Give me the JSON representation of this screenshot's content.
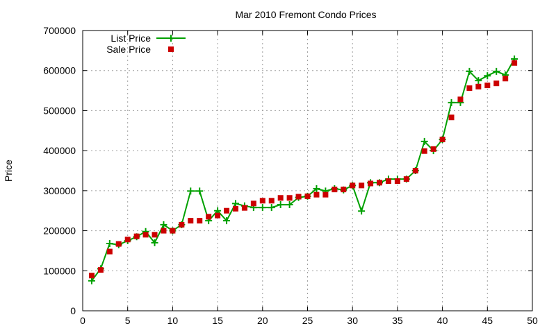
{
  "chart_data": {
    "type": "line",
    "title": "Mar 2010 Fremont Condo Prices",
    "xlabel": "",
    "ylabel": "Price",
    "xlim": [
      0,
      50
    ],
    "ylim": [
      0,
      700000
    ],
    "x_ticks": [
      0,
      5,
      10,
      15,
      20,
      25,
      30,
      35,
      40,
      45,
      50
    ],
    "y_ticks": [
      0,
      100000,
      200000,
      300000,
      400000,
      500000,
      600000,
      700000
    ],
    "grid": true,
    "legend_position": "top-left",
    "x": [
      1,
      2,
      3,
      4,
      5,
      6,
      7,
      8,
      9,
      10,
      11,
      12,
      13,
      14,
      15,
      16,
      17,
      18,
      19,
      20,
      21,
      22,
      23,
      24,
      25,
      26,
      27,
      28,
      29,
      30,
      31,
      32,
      33,
      34,
      35,
      36,
      37,
      38,
      39,
      40,
      41,
      42,
      43,
      44,
      45,
      46,
      47,
      48
    ],
    "series": [
      {
        "name": "List Price",
        "style": "linespoints",
        "marker": "plus",
        "color": "#00a000",
        "values": [
          75000,
          105000,
          168000,
          165000,
          175000,
          185000,
          198000,
          170000,
          215000,
          200000,
          215000,
          299000,
          299000,
          225000,
          250000,
          225000,
          268000,
          262000,
          258000,
          258000,
          258000,
          265000,
          265000,
          283000,
          286000,
          305000,
          299000,
          305000,
          302000,
          313000,
          249000,
          320000,
          320000,
          329000,
          329000,
          329000,
          350000,
          423000,
          400000,
          428000,
          520000,
          520000,
          598000,
          575000,
          587000,
          598000,
          589000,
          629000
        ]
      },
      {
        "name": "Sale Price",
        "style": "points",
        "marker": "square",
        "color": "#cc0000",
        "values": [
          88000,
          102000,
          148000,
          167000,
          178000,
          186000,
          190000,
          190000,
          200000,
          200000,
          215000,
          225000,
          225000,
          235000,
          238000,
          250000,
          255000,
          257000,
          268000,
          275000,
          275000,
          282000,
          282000,
          285000,
          286000,
          290000,
          290000,
          303000,
          303000,
          313000,
          313000,
          318000,
          320000,
          324000,
          324000,
          329000,
          350000,
          399000,
          404000,
          428000,
          483000,
          528000,
          556000,
          560000,
          563000,
          568000,
          580000,
          619000
        ]
      }
    ]
  }
}
